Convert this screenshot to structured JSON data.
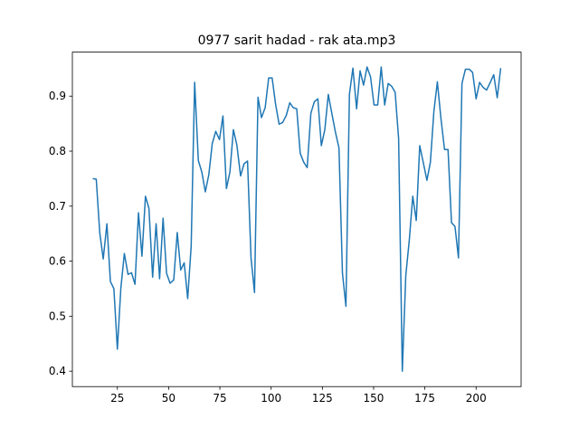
{
  "chart_data": {
    "type": "line",
    "title": "0977 sarit hadad - rak ata.mp3",
    "x": [
      13.0,
      14.7,
      16.4,
      18.1,
      19.9,
      21.6,
      23.3,
      25.0,
      26.7,
      28.4,
      30.2,
      31.9,
      33.6,
      35.3,
      37.0,
      38.7,
      40.4,
      42.2,
      43.9,
      45.6,
      47.3,
      49.0,
      50.7,
      52.5,
      54.2,
      55.9,
      57.6,
      59.3,
      61.0,
      62.7,
      64.5,
      66.2,
      67.9,
      69.6,
      71.3,
      73.0,
      74.8,
      76.5,
      78.2,
      79.9,
      81.6,
      83.3,
      85.1,
      86.8,
      88.5,
      90.2,
      91.9,
      93.6,
      95.3,
      97.1,
      98.8,
      100.5,
      102.2,
      103.9,
      105.6,
      107.4,
      109.1,
      110.8,
      112.5,
      114.2,
      115.9,
      117.6,
      119.4,
      121.1,
      122.8,
      124.5,
      126.2,
      127.9,
      129.7,
      131.4,
      133.1,
      134.8,
      136.5,
      138.2,
      139.9,
      141.7,
      143.4,
      145.1,
      146.8,
      148.5,
      150.2,
      152.0,
      153.7,
      155.4,
      157.1,
      158.8,
      160.5,
      162.2,
      164.0,
      165.7,
      167.4,
      169.1,
      170.8,
      172.5,
      174.3,
      176.0,
      177.7,
      179.4,
      181.1,
      182.8,
      184.6,
      186.3,
      188.0,
      189.7,
      191.4,
      193.1,
      194.8,
      196.6,
      198.3,
      200.0,
      201.7,
      203.4,
      205.1,
      206.9,
      208.6,
      210.3,
      212.0
    ],
    "series": [
      {
        "color": "#1f77b4",
        "values": [
          0.75,
          0.749,
          0.652,
          0.604,
          0.668,
          0.563,
          0.55,
          0.44,
          0.551,
          0.614,
          0.576,
          0.579,
          0.558,
          0.688,
          0.609,
          0.718,
          0.696,
          0.571,
          0.668,
          0.568,
          0.678,
          0.578,
          0.56,
          0.566,
          0.652,
          0.584,
          0.597,
          0.532,
          0.627,
          0.925,
          0.783,
          0.762,
          0.726,
          0.757,
          0.814,
          0.836,
          0.821,
          0.864,
          0.732,
          0.762,
          0.839,
          0.811,
          0.755,
          0.777,
          0.782,
          0.606,
          0.543,
          0.898,
          0.861,
          0.879,
          0.933,
          0.933,
          0.885,
          0.849,
          0.852,
          0.865,
          0.888,
          0.879,
          0.877,
          0.796,
          0.78,
          0.77,
          0.869,
          0.89,
          0.895,
          0.81,
          0.839,
          0.903,
          0.867,
          0.834,
          0.806,
          0.578,
          0.518,
          0.903,
          0.951,
          0.877,
          0.946,
          0.92,
          0.953,
          0.935,
          0.884,
          0.884,
          0.953,
          0.884,
          0.923,
          0.918,
          0.907,
          0.823,
          0.4,
          0.574,
          0.638,
          0.718,
          0.674,
          0.81,
          0.778,
          0.747,
          0.78,
          0.872,
          0.926,
          0.861,
          0.803,
          0.803,
          0.67,
          0.663,
          0.606,
          0.923,
          0.949,
          0.949,
          0.943,
          0.895,
          0.925,
          0.916,
          0.911,
          0.925,
          0.939,
          0.897,
          0.951
        ]
      }
    ],
    "xlim": [
      3.05,
      221.95
    ],
    "xticks": [
      25,
      50,
      75,
      100,
      125,
      150,
      175,
      200
    ],
    "ylim": [
      0.372,
      0.98
    ],
    "yticks": [
      0.4,
      0.5,
      0.6,
      0.7,
      0.8,
      0.9
    ]
  }
}
